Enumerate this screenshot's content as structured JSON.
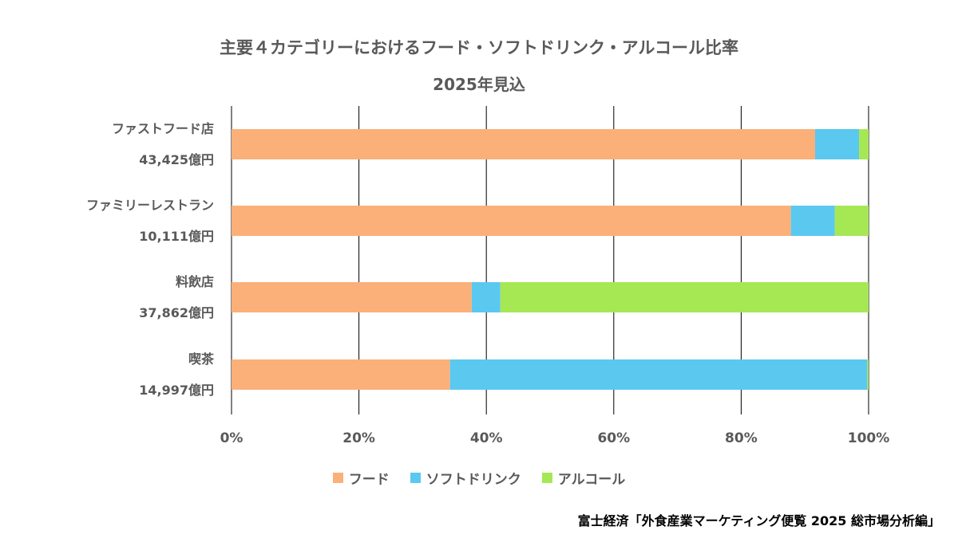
{
  "chart_data": {
    "type": "bar",
    "orientation": "horizontal",
    "stacked": true,
    "title": "主要４カテゴリーにおけるフード・ソフトドリンク・アルコール比率",
    "subtitle": "2025年見込",
    "categories": [
      {
        "name": "ファストフード店",
        "value_label": "43,425億円"
      },
      {
        "name": "ファミリーレストラン",
        "value_label": "10,111億円"
      },
      {
        "name": "料飲店",
        "value_label": "37,862億円"
      },
      {
        "name": "喫茶",
        "value_label": "14,997億円"
      }
    ],
    "series": [
      {
        "name": "フード",
        "color": "#FBB07A",
        "values": [
          91.6,
          87.8,
          37.7,
          34.3
        ]
      },
      {
        "name": "ソフトドリンク",
        "color": "#5BC8F0",
        "values": [
          6.9,
          6.9,
          4.5,
          65.5
        ]
      },
      {
        "name": "アルコール",
        "color": "#A6E754",
        "values": [
          1.5,
          5.3,
          57.8,
          0.2
        ]
      }
    ],
    "xlim": [
      0,
      100
    ],
    "xticks": [
      "0%",
      "20%",
      "40%",
      "60%",
      "80%",
      "100%"
    ],
    "grid": true,
    "legend_position": "bottom"
  },
  "source": "富士経済「外食産業マーケティング便覧 2025 総市場分析編」"
}
